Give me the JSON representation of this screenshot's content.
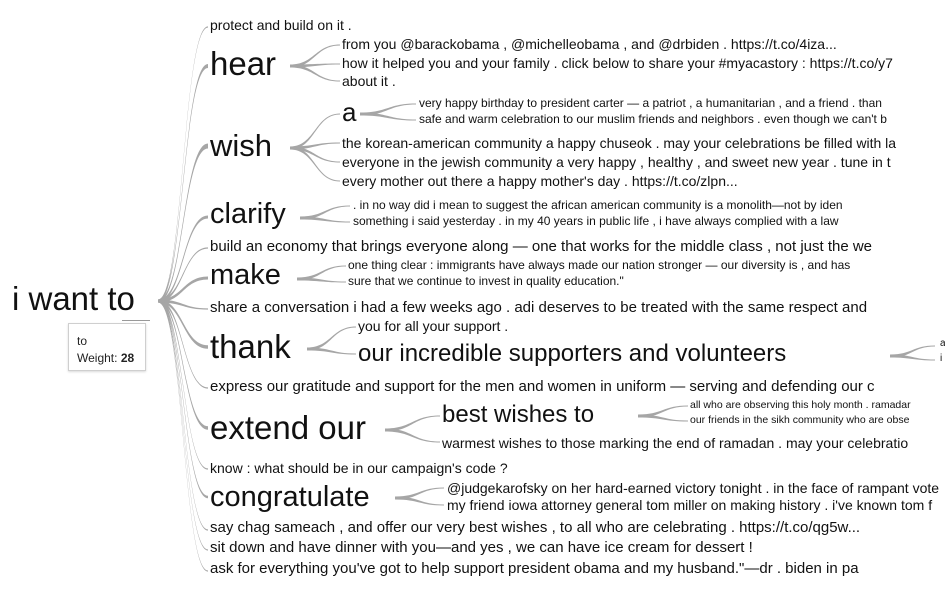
{
  "root": {
    "label": "i want to"
  },
  "tooltip": {
    "word": "to",
    "weight_label": "Weight:",
    "weight_value": "28"
  },
  "nodes": {
    "protect": "protect and build on it .",
    "hear": "hear",
    "hear_1": "from you @barackobama , @michelleobama , and @drbiden . https://t.co/4iza...",
    "hear_2": "how it helped you and your family . click below to share your #myacastory : https://t.co/y7",
    "hear_3": "about it .",
    "wish": "wish",
    "wish_a": "a",
    "wish_a_1": "very happy birthday to president carter — a patriot , a humanitarian , and a friend . than",
    "wish_a_2": "safe and warm celebration to our muslim friends and neighbors . even though we can't b",
    "wish_1": "the korean-american community a happy chuseok . may your celebrations be filled with la",
    "wish_2": "everyone in the jewish community a very happy , healthy , and sweet new year . tune in t",
    "wish_3": "every mother out there a happy mother's day . https://t.co/zlpn...",
    "clarify": "clarify",
    "clarify_1": ". in no way did i mean to suggest the african american community is a monolith—not by iden",
    "clarify_2": "something i said yesterday . in my 40 years in public life , i have always complied with a law",
    "build": "build an economy that brings everyone along — one that works for the middle class , not just the we",
    "make": "make",
    "make_1": "one thing clear : immigrants have always made our nation stronger — our diversity is , and has",
    "make_2": "sure that we continue to invest in quality education.\"",
    "share": "share a conversation i had a few weeks ago . adi deserves to be treated with the same respect and",
    "thank": "thank",
    "thank_1": "you for all your support .",
    "thank_2": "our incredible supporters and volunteers",
    "thank_2_a": "a",
    "thank_2_b": "i",
    "express": "express our gratitude and support for the men and women in uniform — serving and defending our c",
    "extend": "extend our",
    "extend_best": "best wishes to",
    "extend_best_1": "all who are observing this holy month . ramadar",
    "extend_best_2": "our friends in the sikh community who are obse",
    "extend_1": "warmest wishes to those marking the end of ramadan . may your celebratio",
    "know": "know : what should be in our campaign's code ?",
    "congratulate": "congratulate",
    "congratulate_1": "@judgekarofsky on her hard-earned victory tonight . in the face of rampant vote",
    "congratulate_2": "my friend iowa attorney general tom miller on making history . i've known tom f",
    "say": "say chag sameach , and offer our very best wishes , to all who are celebrating . https://t.co/qg5w...",
    "sit": "sit down and have dinner with you—and yes , we can have ice cream for dessert !",
    "ask": "ask for everything you've got to help support president obama and my husband.\"—dr . biden in pa"
  }
}
